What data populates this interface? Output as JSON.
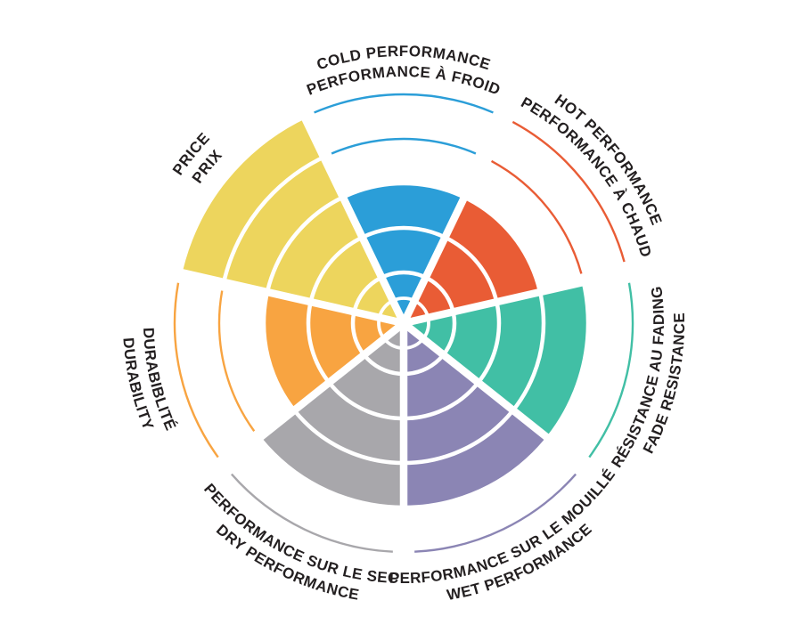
{
  "chart_data": {
    "type": "rose",
    "title": "",
    "description_visible_text_only": true,
    "background": "#FFFFFF",
    "text_color": "#231F20",
    "grid_color": "#FFFFFF",
    "center": [
      453,
      363
    ],
    "levels": 5,
    "level_radii": [
      57,
      107,
      157,
      207,
      257
    ],
    "inner_ring_radius": 28,
    "max_value": 5,
    "sector_half_angle_deg": 25.714,
    "series": [
      {
        "id": "cold",
        "label_en": "COLD PERFORMANCE",
        "label_fr": "PERFORMANCE À FROID",
        "value": 3,
        "color": "#2B9ED8",
        "mid_angle_deg": 90,
        "label_orientation": "normal"
      },
      {
        "id": "hot",
        "label_en": "HOT PERFORMANCE",
        "label_fr": "PERFORMANCE À CHAUD",
        "value": 3,
        "color": "#E95C35",
        "mid_angle_deg": 38.571,
        "label_orientation": "normal"
      },
      {
        "id": "fade",
        "label_en": "FADE RESISTANCE",
        "label_fr": "RÉSISTANCE AU FADING",
        "value": 4,
        "color": "#41BFA5",
        "mid_angle_deg": -12.857,
        "label_orientation": "inverted"
      },
      {
        "id": "wet",
        "label_en": "WET PERFORMANCE",
        "label_fr": "PERFORMANCE SUR LE MOUILLÉ",
        "value": 4,
        "color": "#8B85B4",
        "mid_angle_deg": -64.286,
        "label_orientation": "inverted"
      },
      {
        "id": "dry",
        "label_en": "DRY PERFORMANCE",
        "label_fr": "PERFORMANCE SUR LE SEC",
        "value": 4,
        "color": "#A8A7AB",
        "mid_angle_deg": -115.714,
        "label_orientation": "inverted"
      },
      {
        "id": "durability",
        "label_en": "DURABILITY",
        "label_fr": "DURABIBLITÉ",
        "value": 3,
        "color": "#F8A441",
        "mid_angle_deg": -167.143,
        "label_orientation": "inverted"
      },
      {
        "id": "price",
        "label_en": "PRICE",
        "label_fr": "PRIX",
        "value": 5,
        "color": "#EDD55D",
        "mid_angle_deg": 141.429,
        "label_orientation": "normal"
      }
    ],
    "label_layout": {
      "font_size": 17,
      "normal_radius_en": 300,
      "normal_radius_fr": 277,
      "inverted_radius_en": 315,
      "inverted_radius_fr": 292,
      "thin_arc_half_angle_deg": 23
    },
    "legend": null,
    "axes": {
      "grid": "concentric white rings over filled sectors; unfilled levels shown as thin sector-colored arcs"
    }
  }
}
